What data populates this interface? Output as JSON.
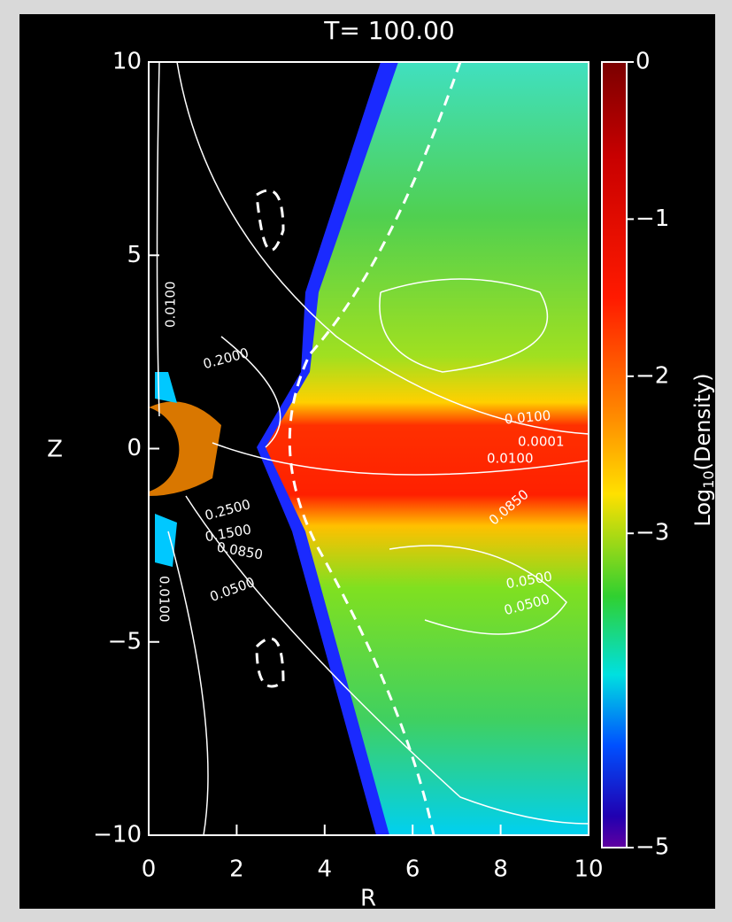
{
  "chart_data": {
    "type": "contour",
    "title": "T=  100.00",
    "xlabel": "R",
    "ylabel": "Z",
    "xlim": [
      0,
      10
    ],
    "ylim": [
      -10,
      10
    ],
    "xticks": [
      0,
      2,
      4,
      6,
      8,
      10
    ],
    "yticks": [
      {
        "value": -10,
        "label": "−10"
      },
      {
        "value": -5,
        "label": "−5"
      },
      0,
      5,
      10
    ],
    "colorbar": {
      "label": {
        "text": "Log",
        "subscript": "10",
        "suffix": "(Density)"
      },
      "lim": [
        -5,
        0
      ],
      "ticks": [
        0,
        {
          "value": -1,
          "label": "−1"
        },
        {
          "value": -2,
          "label": "−2"
        },
        {
          "value": -3,
          "label": "−3"
        },
        {
          "value": -5,
          "label": "−5"
        }
      ]
    },
    "contour_labels": [
      "0.0100",
      "0.2000",
      "0.0100",
      "0.0001",
      "0.0100",
      "0.0850",
      "0.2500",
      "0.1500",
      "0.0850",
      "0.0500",
      "0.0100",
      "0.0500",
      "0.0500"
    ]
  }
}
